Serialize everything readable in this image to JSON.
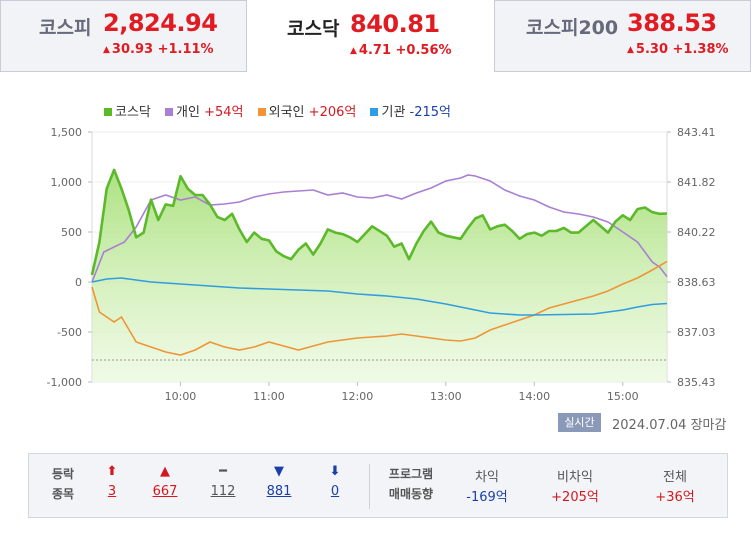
{
  "tabs": [
    {
      "name": "코스피",
      "value": "2,824.94",
      "change": "30.93 +1.11%",
      "active": false
    },
    {
      "name": "코스닥",
      "value": "840.81",
      "change": "4.71 +0.56%",
      "active": true
    },
    {
      "name": "코스피200",
      "value": "388.53",
      "change": "5.30 +1.38%",
      "active": false
    }
  ],
  "legend": [
    {
      "label": "코스닥",
      "value": "",
      "color": "#5bb92a",
      "value_color": ""
    },
    {
      "label": "개인",
      "value": "+54억",
      "color": "#a97fd4",
      "value_color": "#d4181f"
    },
    {
      "label": "외국인",
      "value": "+206억",
      "color": "#ef9536",
      "value_color": "#d4181f"
    },
    {
      "label": "기관",
      "value": "-215억",
      "color": "#2f9ee0",
      "value_color": "#1b3fa8"
    }
  ],
  "status": {
    "badge": "실시간",
    "date": "2024.07.04",
    "session": "장마감"
  },
  "breadth": {
    "label_line1": "등락",
    "label_line2": "종목",
    "items": [
      {
        "icon": "upper-limit-icon",
        "glyph": "⬆",
        "count": "3",
        "color": "#d4181f"
      },
      {
        "icon": "rise-icon",
        "glyph": "▲",
        "count": "667",
        "color": "#d4181f"
      },
      {
        "icon": "unchanged-icon",
        "glyph": "━",
        "count": "112",
        "color": "#555555"
      },
      {
        "icon": "fall-icon",
        "glyph": "▼",
        "count": "881",
        "color": "#1b3fa8"
      },
      {
        "icon": "lower-limit-icon",
        "glyph": "⬇",
        "count": "0",
        "color": "#1b3fa8"
      }
    ]
  },
  "program": {
    "label_line1": "프로그램",
    "label_line2": "매매동향",
    "cols": [
      {
        "head": "차익",
        "value": "-169억",
        "color": "#1b3fa8"
      },
      {
        "head": "비차익",
        "value": "+205억",
        "color": "#d4181f"
      },
      {
        "head": "전체",
        "value": "+36억",
        "color": "#d4181f"
      }
    ]
  },
  "chart_data": {
    "type": "line",
    "x_ticks": [
      "10:00",
      "11:00",
      "12:00",
      "13:00",
      "14:00",
      "15:00"
    ],
    "x_tick_minutes": [
      60,
      120,
      180,
      240,
      300,
      360
    ],
    "x_range_minutes": [
      0,
      390
    ],
    "y_left_ticks": [
      "1,500",
      "1,000",
      "500",
      "0",
      "-500",
      "-1,000"
    ],
    "y_left_range": [
      -1000,
      1500
    ],
    "y_right_ticks": [
      "843.41",
      "841.82",
      "840.22",
      "838.63",
      "837.03",
      "835.43"
    ],
    "y_right_range": [
      835.43,
      843.41
    ],
    "reference_line": {
      "axis": "left",
      "value": -780
    },
    "colors": {
      "index": "#5bb92a",
      "individual": "#a97fd4",
      "foreign": "#ef9536",
      "institution": "#2f9ee0"
    },
    "series": [
      {
        "name": "코스닥",
        "axis": "right",
        "key": "index",
        "points": [
          [
            0,
            838.85
          ],
          [
            5,
            839.9
          ],
          [
            10,
            841.6
          ],
          [
            15,
            842.2
          ],
          [
            20,
            841.6
          ],
          [
            25,
            840.9
          ],
          [
            30,
            840.05
          ],
          [
            35,
            840.2
          ],
          [
            40,
            841.25
          ],
          [
            45,
            840.6
          ],
          [
            50,
            841.1
          ],
          [
            55,
            841.05
          ],
          [
            60,
            842.0
          ],
          [
            65,
            841.6
          ],
          [
            70,
            841.4
          ],
          [
            75,
            841.4
          ],
          [
            80,
            841.1
          ],
          [
            85,
            840.7
          ],
          [
            90,
            840.6
          ],
          [
            95,
            840.8
          ],
          [
            100,
            840.3
          ],
          [
            105,
            839.9
          ],
          [
            110,
            840.2
          ],
          [
            115,
            840.0
          ],
          [
            120,
            839.95
          ],
          [
            125,
            839.6
          ],
          [
            130,
            839.45
          ],
          [
            135,
            839.35
          ],
          [
            140,
            839.65
          ],
          [
            145,
            839.85
          ],
          [
            150,
            839.5
          ],
          [
            155,
            839.85
          ],
          [
            160,
            840.3
          ],
          [
            165,
            840.2
          ],
          [
            170,
            840.15
          ],
          [
            175,
            840.05
          ],
          [
            180,
            839.9
          ],
          [
            185,
            840.15
          ],
          [
            190,
            840.4
          ],
          [
            195,
            840.25
          ],
          [
            200,
            840.1
          ],
          [
            205,
            839.75
          ],
          [
            210,
            839.85
          ],
          [
            215,
            839.35
          ],
          [
            220,
            839.85
          ],
          [
            225,
            840.25
          ],
          [
            230,
            840.55
          ],
          [
            235,
            840.2
          ],
          [
            240,
            840.1
          ],
          [
            245,
            840.05
          ],
          [
            250,
            840.0
          ],
          [
            255,
            840.35
          ],
          [
            260,
            840.65
          ],
          [
            265,
            840.75
          ],
          [
            270,
            840.3
          ],
          [
            275,
            840.4
          ],
          [
            280,
            840.45
          ],
          [
            285,
            840.25
          ],
          [
            290,
            840.0
          ],
          [
            295,
            840.15
          ],
          [
            300,
            840.2
          ],
          [
            305,
            840.1
          ],
          [
            310,
            840.25
          ],
          [
            315,
            840.25
          ],
          [
            320,
            840.35
          ],
          [
            325,
            840.2
          ],
          [
            330,
            840.2
          ],
          [
            335,
            840.4
          ],
          [
            340,
            840.6
          ],
          [
            345,
            840.4
          ],
          [
            350,
            840.2
          ],
          [
            355,
            840.55
          ],
          [
            360,
            840.75
          ],
          [
            365,
            840.6
          ],
          [
            370,
            840.95
          ],
          [
            375,
            841.0
          ],
          [
            380,
            840.85
          ],
          [
            385,
            840.8
          ],
          [
            390,
            840.81
          ]
        ]
      },
      {
        "name": "개인",
        "axis": "left",
        "key": "individual",
        "points": [
          [
            0,
            0
          ],
          [
            8,
            300
          ],
          [
            15,
            350
          ],
          [
            22,
            400
          ],
          [
            30,
            550
          ],
          [
            40,
            820
          ],
          [
            50,
            870
          ],
          [
            60,
            820
          ],
          [
            70,
            850
          ],
          [
            80,
            770
          ],
          [
            90,
            780
          ],
          [
            100,
            800
          ],
          [
            110,
            850
          ],
          [
            120,
            880
          ],
          [
            130,
            900
          ],
          [
            140,
            910
          ],
          [
            150,
            920
          ],
          [
            160,
            870
          ],
          [
            170,
            890
          ],
          [
            180,
            850
          ],
          [
            190,
            840
          ],
          [
            200,
            870
          ],
          [
            210,
            830
          ],
          [
            220,
            890
          ],
          [
            230,
            940
          ],
          [
            240,
            1010
          ],
          [
            250,
            1040
          ],
          [
            255,
            1070
          ],
          [
            260,
            1060
          ],
          [
            270,
            1010
          ],
          [
            280,
            920
          ],
          [
            290,
            860
          ],
          [
            300,
            820
          ],
          [
            310,
            750
          ],
          [
            320,
            700
          ],
          [
            330,
            680
          ],
          [
            340,
            650
          ],
          [
            350,
            600
          ],
          [
            360,
            500
          ],
          [
            370,
            400
          ],
          [
            380,
            200
          ],
          [
            385,
            150
          ],
          [
            390,
            54
          ]
        ]
      },
      {
        "name": "외국인",
        "axis": "left",
        "key": "foreign",
        "points": [
          [
            0,
            -50
          ],
          [
            5,
            -300
          ],
          [
            15,
            -400
          ],
          [
            20,
            -350
          ],
          [
            30,
            -600
          ],
          [
            40,
            -650
          ],
          [
            50,
            -700
          ],
          [
            60,
            -730
          ],
          [
            70,
            -680
          ],
          [
            80,
            -600
          ],
          [
            90,
            -650
          ],
          [
            100,
            -680
          ],
          [
            110,
            -650
          ],
          [
            120,
            -600
          ],
          [
            130,
            -640
          ],
          [
            140,
            -680
          ],
          [
            150,
            -640
          ],
          [
            160,
            -600
          ],
          [
            170,
            -580
          ],
          [
            180,
            -560
          ],
          [
            190,
            -550
          ],
          [
            200,
            -540
          ],
          [
            210,
            -520
          ],
          [
            220,
            -540
          ],
          [
            230,
            -560
          ],
          [
            240,
            -580
          ],
          [
            250,
            -590
          ],
          [
            260,
            -560
          ],
          [
            270,
            -480
          ],
          [
            280,
            -430
          ],
          [
            290,
            -380
          ],
          [
            300,
            -330
          ],
          [
            310,
            -260
          ],
          [
            320,
            -220
          ],
          [
            330,
            -180
          ],
          [
            340,
            -140
          ],
          [
            350,
            -90
          ],
          [
            360,
            -20
          ],
          [
            370,
            40
          ],
          [
            380,
            120
          ],
          [
            390,
            206
          ]
        ]
      },
      {
        "name": "기관",
        "axis": "left",
        "key": "institution",
        "points": [
          [
            0,
            0
          ],
          [
            10,
            30
          ],
          [
            20,
            40
          ],
          [
            30,
            20
          ],
          [
            40,
            0
          ],
          [
            50,
            -10
          ],
          [
            60,
            -20
          ],
          [
            80,
            -40
          ],
          [
            100,
            -60
          ],
          [
            120,
            -70
          ],
          [
            140,
            -80
          ],
          [
            160,
            -90
          ],
          [
            180,
            -120
          ],
          [
            200,
            -140
          ],
          [
            220,
            -170
          ],
          [
            240,
            -220
          ],
          [
            260,
            -280
          ],
          [
            270,
            -310
          ],
          [
            280,
            -320
          ],
          [
            290,
            -330
          ],
          [
            300,
            -330
          ],
          [
            320,
            -325
          ],
          [
            340,
            -320
          ],
          [
            350,
            -300
          ],
          [
            360,
            -280
          ],
          [
            370,
            -250
          ],
          [
            380,
            -225
          ],
          [
            390,
            -215
          ]
        ]
      }
    ]
  }
}
